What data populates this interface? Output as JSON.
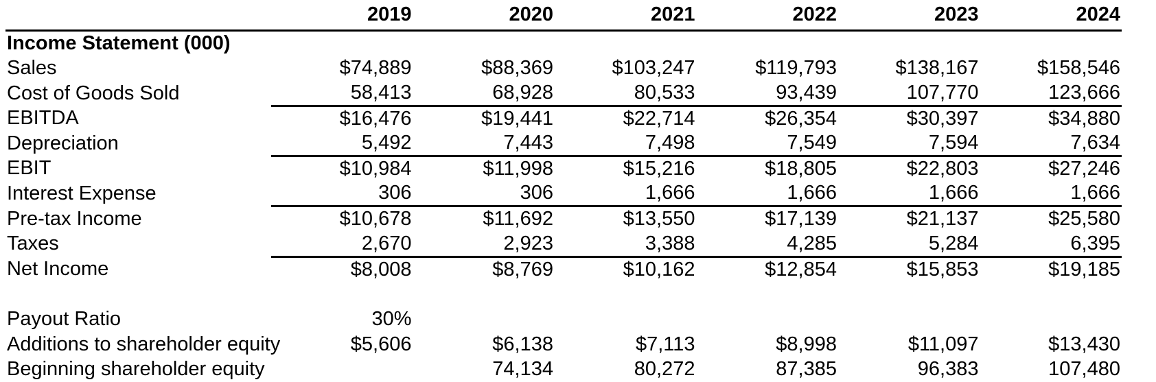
{
  "colors": {
    "text": "#000000",
    "background": "#ffffff",
    "rule_line": "#000000"
  },
  "table": {
    "column_headers": [
      "2019",
      "2020",
      "2021",
      "2022",
      "2023",
      "2024"
    ],
    "rows": [
      {
        "label": "Income Statement (000)",
        "values": [
          "",
          "",
          "",
          "",
          "",
          ""
        ],
        "bold": true
      },
      {
        "label": "Sales",
        "values": [
          "$74,889",
          "$88,369",
          "$103,247",
          "$119,793",
          "$138,167",
          "$158,546"
        ]
      },
      {
        "label": "Cost of Goods Sold",
        "values": [
          "58,413",
          "68,928",
          "80,533",
          "93,439",
          "107,770",
          "123,666"
        ],
        "underline": true
      },
      {
        "label": "EBITDA",
        "values": [
          "$16,476",
          "$19,441",
          "$22,714",
          "$26,354",
          "$30,397",
          "$34,880"
        ]
      },
      {
        "label": "Depreciation",
        "values": [
          "5,492",
          "7,443",
          "7,498",
          "7,549",
          "7,594",
          "7,634"
        ],
        "underline": true
      },
      {
        "label": "EBIT",
        "values": [
          "$10,984",
          "$11,998",
          "$15,216",
          "$18,805",
          "$22,803",
          "$27,246"
        ]
      },
      {
        "label": "Interest Expense",
        "values": [
          "306",
          "306",
          "1,666",
          "1,666",
          "1,666",
          "1,666"
        ],
        "underline": true
      },
      {
        "label": "Pre-tax Income",
        "values": [
          "$10,678",
          "$11,692",
          "$13,550",
          "$17,139",
          "$21,137",
          "$25,580"
        ]
      },
      {
        "label": "Taxes",
        "values": [
          "2,670",
          "2,923",
          "3,388",
          "4,285",
          "5,284",
          "6,395"
        ],
        "underline": true
      },
      {
        "label": "Net Income",
        "values": [
          "$8,008",
          "$8,769",
          "$10,162",
          "$12,854",
          "$15,853",
          "$19,185"
        ]
      },
      {
        "label": "",
        "values": [
          "",
          "",
          "",
          "",
          "",
          ""
        ],
        "blank": true
      },
      {
        "label": "Payout Ratio",
        "values": [
          "30%",
          "",
          "",
          "",
          "",
          ""
        ]
      },
      {
        "label": "Additions to shareholder equity",
        "values": [
          "$5,606",
          "$6,138",
          "$7,113",
          "$8,998",
          "$11,097",
          "$13,430"
        ]
      },
      {
        "label": "Beginning shareholder equity",
        "values": [
          "",
          "74,134",
          "80,272",
          "87,385",
          "96,383",
          "107,480"
        ]
      }
    ]
  }
}
